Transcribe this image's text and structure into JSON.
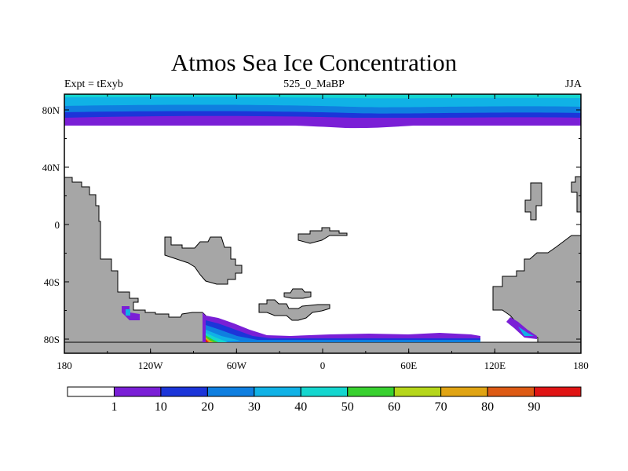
{
  "title": "Atmos Sea Ice Concentration",
  "subtitle_left": "Expt = tExyb",
  "subtitle_center": "525_0_MaBP",
  "subtitle_right": "JJA",
  "lon_ticks": [
    "180",
    "120W",
    "60W",
    "0",
    "60E",
    "120E",
    "180"
  ],
  "lat_ticks": [
    "80N",
    "40N",
    "0",
    "40S",
    "80S"
  ],
  "colorbar": {
    "labels": [
      "1",
      "10",
      "20",
      "30",
      "40",
      "50",
      "60",
      "70",
      "80",
      "90"
    ],
    "colors": [
      "#ffffff",
      "#7a1fd6",
      "#1c35d9",
      "#0f7fe0",
      "#10b2e6",
      "#14d6cf",
      "#38d12f",
      "#b5d61a",
      "#e0a413",
      "#dd5a14",
      "#e01414"
    ]
  },
  "colors": {
    "land": "#a6a6a6",
    "ice_level_1": "#7a1fd6",
    "ice_level_2": "#1c35d9",
    "ice_level_3": "#0f7fe0",
    "ice_level_4": "#10b2e6",
    "ice_level_5": "#14d6cf"
  }
}
